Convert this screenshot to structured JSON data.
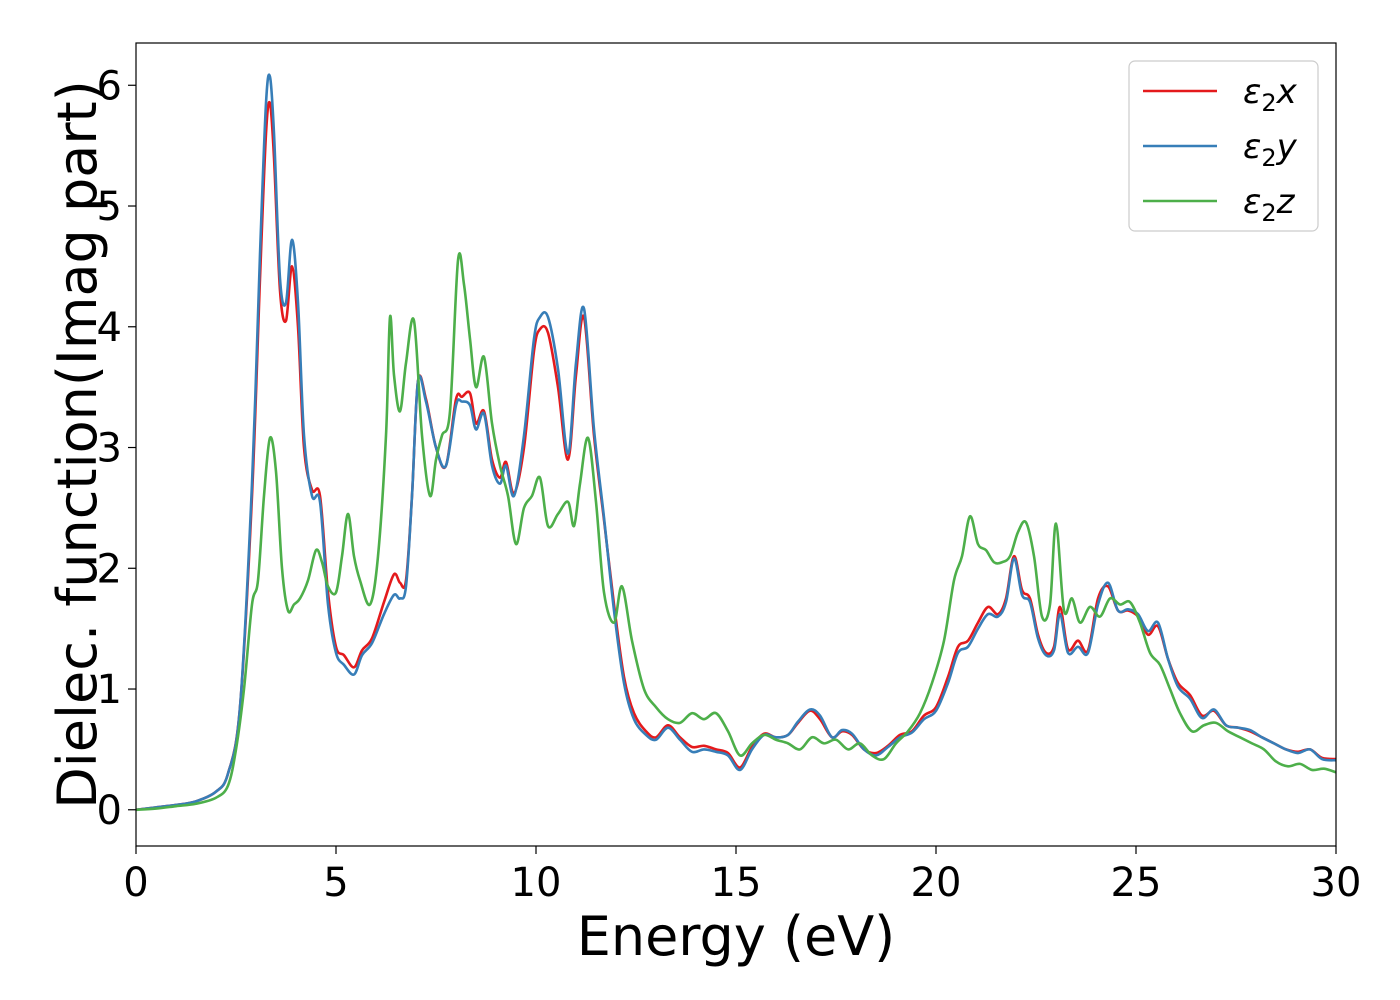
{
  "chart_data": {
    "type": "line",
    "xlabel": "Energy (eV)",
    "ylabel": "Dielec. function(Imag part)",
    "xlim": [
      0,
      30
    ],
    "ylim": [
      -0.3,
      6.35
    ],
    "xticks": [
      0,
      5,
      10,
      15,
      20,
      25,
      30
    ],
    "yticks": [
      0,
      1,
      2,
      3,
      4,
      5,
      6
    ],
    "grid": false,
    "legend_position": "top-right",
    "series": [
      {
        "name": "ε2x",
        "legend": {
          "base": "ε",
          "sub": "2",
          "suffix": "x"
        },
        "color": "#e41a1c",
        "x": [
          0,
          0.5,
          1.0,
          1.5,
          2.0,
          2.3,
          2.6,
          2.9,
          3.1,
          3.25,
          3.35,
          3.45,
          3.6,
          3.75,
          3.9,
          4.05,
          4.2,
          4.4,
          4.6,
          4.8,
          5.0,
          5.2,
          5.45,
          5.65,
          5.9,
          6.2,
          6.45,
          6.6,
          6.75,
          6.9,
          7.05,
          7.25,
          7.5,
          7.75,
          8.0,
          8.15,
          8.35,
          8.5,
          8.7,
          8.9,
          9.1,
          9.25,
          9.45,
          9.7,
          9.95,
          10.1,
          10.3,
          10.55,
          10.8,
          11.0,
          11.2,
          11.45,
          11.7,
          11.95,
          12.2,
          12.45,
          12.75,
          13.0,
          13.3,
          13.6,
          13.9,
          14.2,
          14.5,
          14.8,
          15.1,
          15.4,
          15.7,
          16.0,
          16.3,
          16.55,
          16.85,
          17.1,
          17.4,
          17.65,
          17.9,
          18.2,
          18.5,
          18.8,
          19.1,
          19.4,
          19.7,
          20.0,
          20.3,
          20.55,
          20.8,
          21.05,
          21.3,
          21.55,
          21.75,
          21.95,
          22.15,
          22.35,
          22.55,
          22.75,
          22.95,
          23.1,
          23.3,
          23.55,
          23.8,
          24.05,
          24.3,
          24.55,
          24.8,
          25.05,
          25.3,
          25.55,
          25.8,
          26.05,
          26.35,
          26.65,
          26.95,
          27.25,
          27.55,
          27.85,
          28.15,
          28.45,
          28.75,
          29.05,
          29.35,
          29.65,
          30.0
        ],
        "y": [
          0.0,
          0.02,
          0.04,
          0.07,
          0.15,
          0.3,
          0.85,
          2.6,
          4.4,
          5.6,
          5.85,
          5.4,
          4.3,
          4.05,
          4.5,
          4.0,
          3.0,
          2.65,
          2.6,
          1.8,
          1.35,
          1.28,
          1.18,
          1.32,
          1.42,
          1.72,
          1.95,
          1.88,
          1.9,
          2.6,
          3.55,
          3.4,
          3.0,
          2.85,
          3.4,
          3.42,
          3.45,
          3.2,
          3.3,
          2.9,
          2.75,
          2.88,
          2.62,
          3.0,
          3.8,
          3.98,
          3.95,
          3.5,
          2.9,
          3.6,
          4.08,
          3.1,
          2.4,
          1.7,
          1.1,
          0.8,
          0.65,
          0.6,
          0.7,
          0.6,
          0.52,
          0.53,
          0.5,
          0.47,
          0.35,
          0.52,
          0.63,
          0.6,
          0.62,
          0.72,
          0.82,
          0.75,
          0.6,
          0.65,
          0.62,
          0.5,
          0.47,
          0.53,
          0.62,
          0.65,
          0.78,
          0.85,
          1.1,
          1.35,
          1.4,
          1.55,
          1.68,
          1.62,
          1.75,
          2.1,
          1.82,
          1.75,
          1.45,
          1.3,
          1.35,
          1.68,
          1.33,
          1.4,
          1.32,
          1.75,
          1.85,
          1.65,
          1.65,
          1.6,
          1.45,
          1.52,
          1.25,
          1.05,
          0.95,
          0.78,
          0.82,
          0.7,
          0.68,
          0.65,
          0.6,
          0.55,
          0.5,
          0.48,
          0.5,
          0.43,
          0.42
        ]
      },
      {
        "name": "ε2y",
        "legend": {
          "base": "ε",
          "sub": "2",
          "suffix": "y"
        },
        "color": "#377eb8",
        "x": [
          0,
          0.5,
          1.0,
          1.5,
          2.0,
          2.3,
          2.6,
          2.9,
          3.1,
          3.25,
          3.35,
          3.45,
          3.6,
          3.75,
          3.9,
          4.05,
          4.2,
          4.4,
          4.6,
          4.8,
          5.0,
          5.2,
          5.45,
          5.65,
          5.9,
          6.2,
          6.45,
          6.6,
          6.75,
          6.9,
          7.05,
          7.25,
          7.5,
          7.75,
          8.0,
          8.15,
          8.35,
          8.5,
          8.7,
          8.9,
          9.1,
          9.25,
          9.45,
          9.7,
          9.95,
          10.1,
          10.3,
          10.55,
          10.8,
          11.0,
          11.2,
          11.45,
          11.7,
          11.95,
          12.2,
          12.45,
          12.75,
          13.0,
          13.3,
          13.6,
          13.9,
          14.2,
          14.5,
          14.8,
          15.1,
          15.4,
          15.7,
          16.0,
          16.3,
          16.55,
          16.85,
          17.1,
          17.4,
          17.65,
          17.9,
          18.2,
          18.5,
          18.8,
          19.1,
          19.4,
          19.7,
          20.0,
          20.3,
          20.55,
          20.8,
          21.05,
          21.3,
          21.55,
          21.75,
          21.95,
          22.15,
          22.35,
          22.55,
          22.75,
          22.95,
          23.1,
          23.3,
          23.55,
          23.8,
          24.05,
          24.3,
          24.55,
          24.8,
          25.05,
          25.3,
          25.55,
          25.8,
          26.05,
          26.35,
          26.65,
          26.95,
          27.25,
          27.55,
          27.85,
          28.15,
          28.45,
          28.75,
          29.05,
          29.35,
          29.65,
          30.0
        ],
        "y": [
          0.0,
          0.02,
          0.04,
          0.07,
          0.15,
          0.3,
          0.85,
          2.7,
          4.6,
          5.85,
          6.07,
          5.6,
          4.4,
          4.2,
          4.72,
          4.2,
          3.1,
          2.6,
          2.55,
          1.7,
          1.3,
          1.2,
          1.12,
          1.28,
          1.38,
          1.62,
          1.78,
          1.75,
          1.85,
          2.6,
          3.55,
          3.38,
          3.0,
          2.85,
          3.35,
          3.38,
          3.35,
          3.15,
          3.28,
          2.85,
          2.7,
          2.85,
          2.6,
          3.1,
          3.9,
          4.08,
          4.08,
          3.65,
          2.95,
          3.7,
          4.15,
          3.15,
          2.42,
          1.65,
          1.05,
          0.75,
          0.62,
          0.58,
          0.68,
          0.58,
          0.48,
          0.5,
          0.48,
          0.45,
          0.33,
          0.5,
          0.62,
          0.6,
          0.62,
          0.73,
          0.83,
          0.78,
          0.6,
          0.66,
          0.63,
          0.5,
          0.45,
          0.52,
          0.6,
          0.64,
          0.75,
          0.82,
          1.05,
          1.3,
          1.35,
          1.5,
          1.62,
          1.6,
          1.72,
          2.08,
          1.78,
          1.72,
          1.42,
          1.28,
          1.32,
          1.62,
          1.3,
          1.35,
          1.3,
          1.7,
          1.88,
          1.65,
          1.66,
          1.62,
          1.48,
          1.55,
          1.25,
          1.02,
          0.92,
          0.76,
          0.83,
          0.7,
          0.68,
          0.66,
          0.6,
          0.55,
          0.5,
          0.47,
          0.5,
          0.42,
          0.41
        ]
      },
      {
        "name": "ε2z",
        "legend": {
          "base": "ε",
          "sub": "2",
          "suffix": "z"
        },
        "color": "#4daf4a",
        "x": [
          0,
          0.5,
          1.0,
          1.5,
          2.0,
          2.3,
          2.5,
          2.7,
          2.9,
          3.05,
          3.2,
          3.35,
          3.5,
          3.65,
          3.8,
          3.95,
          4.1,
          4.3,
          4.5,
          4.65,
          4.8,
          5.0,
          5.15,
          5.3,
          5.45,
          5.6,
          5.85,
          6.05,
          6.25,
          6.35,
          6.45,
          6.6,
          6.75,
          6.95,
          7.15,
          7.35,
          7.5,
          7.65,
          7.85,
          8.05,
          8.2,
          8.35,
          8.5,
          8.7,
          8.9,
          9.1,
          9.3,
          9.5,
          9.7,
          9.9,
          10.1,
          10.3,
          10.55,
          10.8,
          10.95,
          11.1,
          11.3,
          11.5,
          11.7,
          11.95,
          12.15,
          12.4,
          12.7,
          13.0,
          13.3,
          13.6,
          13.9,
          14.2,
          14.5,
          14.8,
          15.1,
          15.4,
          15.7,
          16.0,
          16.3,
          16.6,
          16.9,
          17.2,
          17.5,
          17.8,
          18.1,
          18.4,
          18.7,
          19.0,
          19.3,
          19.6,
          19.9,
          20.2,
          20.45,
          20.65,
          20.85,
          21.05,
          21.25,
          21.45,
          21.65,
          21.85,
          22.05,
          22.25,
          22.45,
          22.65,
          22.85,
          23.0,
          23.2,
          23.4,
          23.6,
          23.85,
          24.1,
          24.35,
          24.6,
          24.85,
          25.1,
          25.35,
          25.6,
          25.85,
          26.1,
          26.4,
          26.7,
          27.0,
          27.3,
          27.6,
          27.9,
          28.2,
          28.5,
          28.8,
          29.1,
          29.4,
          29.7,
          30.0
        ],
        "y": [
          0.0,
          0.01,
          0.03,
          0.05,
          0.1,
          0.2,
          0.5,
          1.0,
          1.7,
          1.9,
          2.6,
          3.08,
          2.8,
          2.0,
          1.65,
          1.7,
          1.75,
          1.9,
          2.15,
          2.05,
          1.85,
          1.8,
          2.1,
          2.45,
          2.1,
          1.9,
          1.7,
          2.1,
          3.1,
          4.08,
          3.6,
          3.3,
          3.7,
          4.05,
          3.1,
          2.6,
          2.9,
          3.1,
          3.3,
          4.55,
          4.35,
          3.9,
          3.5,
          3.75,
          3.2,
          2.85,
          2.6,
          2.2,
          2.5,
          2.6,
          2.75,
          2.35,
          2.45,
          2.55,
          2.35,
          2.7,
          3.08,
          2.55,
          1.8,
          1.55,
          1.85,
          1.4,
          1.0,
          0.85,
          0.75,
          0.72,
          0.8,
          0.75,
          0.8,
          0.65,
          0.45,
          0.55,
          0.62,
          0.58,
          0.55,
          0.5,
          0.6,
          0.55,
          0.58,
          0.5,
          0.55,
          0.45,
          0.42,
          0.55,
          0.65,
          0.8,
          1.05,
          1.4,
          1.9,
          2.1,
          2.43,
          2.2,
          2.15,
          2.05,
          2.05,
          2.1,
          2.3,
          2.38,
          2.1,
          1.6,
          1.7,
          2.37,
          1.65,
          1.75,
          1.55,
          1.68,
          1.6,
          1.75,
          1.7,
          1.72,
          1.55,
          1.3,
          1.2,
          1.0,
          0.8,
          0.65,
          0.7,
          0.72,
          0.65,
          0.6,
          0.55,
          0.5,
          0.4,
          0.36,
          0.38,
          0.33,
          0.34,
          0.31
        ]
      }
    ]
  }
}
